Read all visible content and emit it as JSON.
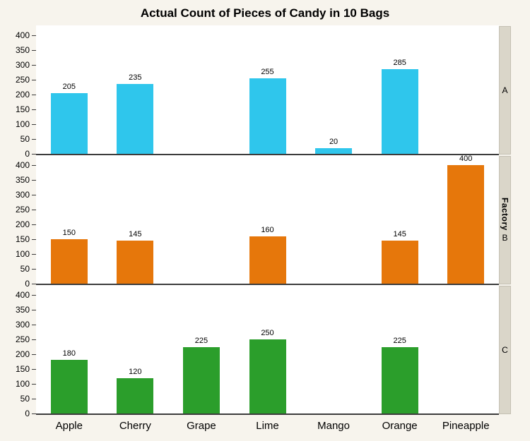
{
  "title": "Actual Count of Pieces of Candy in 10 Bags",
  "chart_data": {
    "type": "bar",
    "title": "Actual Count of Pieces of Candy in 10 Bags",
    "categories": [
      "Apple",
      "Cherry",
      "Grape",
      "Lime",
      "Mango",
      "Orange",
      "Pineapple"
    ],
    "panel_variable": "Factory",
    "panel_layout": "rows",
    "series": [
      {
        "name": "A",
        "color": "#2FC6EC",
        "values": [
          205,
          235,
          null,
          255,
          20,
          285,
          null
        ]
      },
      {
        "name": "B",
        "color": "#E6770B",
        "values": [
          150,
          145,
          null,
          160,
          null,
          145,
          400
        ]
      },
      {
        "name": "C",
        "color": "#2B9E2B",
        "values": [
          180,
          120,
          225,
          250,
          null,
          225,
          null
        ]
      }
    ],
    "ylim": [
      0,
      400
    ],
    "yticks": [
      0,
      50,
      100,
      150,
      200,
      250,
      300,
      350,
      400
    ],
    "grid": false,
    "legend": "none",
    "value_labels": true
  },
  "colors": {
    "background": "#F7F4ED",
    "plot_background": "#FFFFFF",
    "strip_background": "#DAD6C9",
    "strip_border": "#C4C0B3",
    "axis_line": "#3C3C3C",
    "bar_cyan": "#2FC6EC",
    "bar_orange": "#E6770B",
    "bar_green": "#2B9E2B"
  }
}
